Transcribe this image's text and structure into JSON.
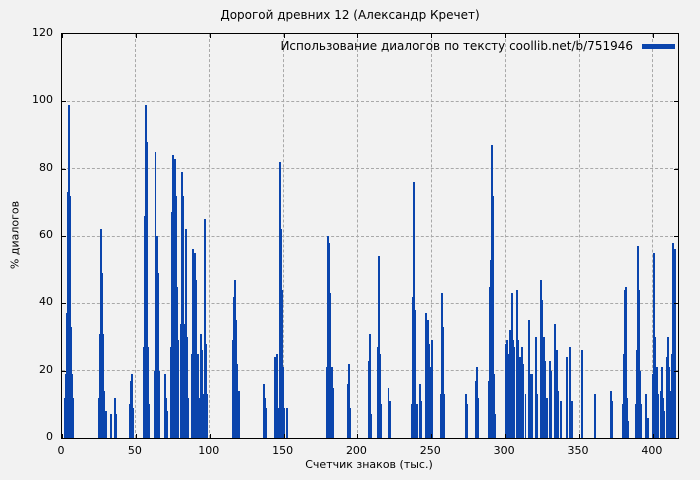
{
  "chart_data": {
    "type": "bar",
    "title": "Дорогой древних 12 (Александр Кречет)",
    "xlabel": "Счетчик знаков (тыс.)",
    "ylabel": "% диалогов",
    "legend": {
      "label": "Использование диалогов по тексту coollib.net/b/751946",
      "position": "top-right"
    },
    "bar_color": "#0b45ad",
    "grid": true,
    "xlim": [
      0,
      417
    ],
    "ylim": [
      0,
      120
    ],
    "xticks": [
      0,
      50,
      100,
      150,
      200,
      250,
      300,
      350,
      400
    ],
    "yticks": [
      0,
      20,
      40,
      60,
      80,
      100,
      120
    ],
    "bars": [
      [
        2.0,
        12
      ],
      [
        2.7,
        19
      ],
      [
        3.3,
        37
      ],
      [
        3.9,
        73
      ],
      [
        4.5,
        99
      ],
      [
        5.1,
        90
      ],
      [
        5.7,
        72
      ],
      [
        6.3,
        33
      ],
      [
        6.9,
        19
      ],
      [
        7.5,
        12
      ],
      [
        25.3,
        12
      ],
      [
        26.0,
        31
      ],
      [
        26.7,
        62
      ],
      [
        27.4,
        49
      ],
      [
        28.1,
        31
      ],
      [
        28.8,
        14
      ],
      [
        29.5,
        8
      ],
      [
        33.1,
        7
      ],
      [
        36.0,
        12
      ],
      [
        36.8,
        7
      ],
      [
        45.8,
        10
      ],
      [
        46.4,
        17
      ],
      [
        47.1,
        19
      ],
      [
        47.8,
        9
      ],
      [
        55.6,
        27
      ],
      [
        56.3,
        66
      ],
      [
        57.0,
        99
      ],
      [
        57.7,
        88
      ],
      [
        58.4,
        27
      ],
      [
        59.1,
        10
      ],
      [
        62.6,
        20
      ],
      [
        63.3,
        85
      ],
      [
        64.1,
        60
      ],
      [
        64.8,
        49
      ],
      [
        65.5,
        20
      ],
      [
        69.8,
        19
      ],
      [
        70.5,
        12
      ],
      [
        71.2,
        8
      ],
      [
        73.8,
        27
      ],
      [
        74.6,
        67
      ],
      [
        75.4,
        84
      ],
      [
        76.2,
        83
      ],
      [
        77.0,
        72
      ],
      [
        77.8,
        45
      ],
      [
        78.6,
        29
      ],
      [
        80.5,
        34
      ],
      [
        81.3,
        79
      ],
      [
        82.1,
        72
      ],
      [
        82.9,
        34
      ],
      [
        83.7,
        62
      ],
      [
        84.5,
        30
      ],
      [
        85.3,
        12
      ],
      [
        87.8,
        25
      ],
      [
        88.6,
        56
      ],
      [
        89.4,
        34
      ],
      [
        90.2,
        55
      ],
      [
        91.0,
        47
      ],
      [
        91.8,
        25
      ],
      [
        92.6,
        12
      ],
      [
        94.0,
        31
      ],
      [
        94.8,
        26
      ],
      [
        95.6,
        13
      ],
      [
        96.9,
        65
      ],
      [
        97.7,
        28
      ],
      [
        98.5,
        13
      ],
      [
        116.0,
        29
      ],
      [
        116.7,
        42
      ],
      [
        117.4,
        47
      ],
      [
        118.1,
        35
      ],
      [
        118.8,
        22
      ],
      [
        119.6,
        14
      ],
      [
        136.5,
        16
      ],
      [
        137.2,
        12
      ],
      [
        138.0,
        9
      ],
      [
        144.5,
        24
      ],
      [
        145.3,
        25
      ],
      [
        146.6,
        9
      ],
      [
        147.4,
        82
      ],
      [
        148.2,
        62
      ],
      [
        149.0,
        44
      ],
      [
        149.8,
        21
      ],
      [
        150.6,
        9
      ],
      [
        152.3,
        9
      ],
      [
        179.3,
        21
      ],
      [
        180.1,
        60
      ],
      [
        180.9,
        58
      ],
      [
        181.7,
        43
      ],
      [
        182.5,
        21
      ],
      [
        183.3,
        15
      ],
      [
        193.3,
        16
      ],
      [
        194.1,
        22
      ],
      [
        194.9,
        9
      ],
      [
        207.7,
        23
      ],
      [
        208.4,
        31
      ],
      [
        209.2,
        7
      ],
      [
        213.8,
        27
      ],
      [
        214.5,
        54
      ],
      [
        215.3,
        25
      ],
      [
        216.1,
        10
      ],
      [
        221.0,
        15
      ],
      [
        221.8,
        11
      ],
      [
        237.1,
        10
      ],
      [
        237.8,
        42
      ],
      [
        238.5,
        76
      ],
      [
        239.3,
        38
      ],
      [
        240.1,
        10
      ],
      [
        242.4,
        16
      ],
      [
        243.2,
        11
      ],
      [
        246.7,
        37
      ],
      [
        247.5,
        35
      ],
      [
        248.2,
        28
      ],
      [
        249.0,
        21
      ],
      [
        249.8,
        18
      ],
      [
        250.5,
        29
      ],
      [
        256.6,
        13
      ],
      [
        257.3,
        43
      ],
      [
        258.1,
        33
      ],
      [
        258.9,
        13
      ],
      [
        273.7,
        13
      ],
      [
        274.5,
        10
      ],
      [
        280.1,
        17
      ],
      [
        280.9,
        21
      ],
      [
        281.7,
        12
      ],
      [
        288.8,
        17
      ],
      [
        289.6,
        45
      ],
      [
        290.3,
        53
      ],
      [
        291.0,
        87
      ],
      [
        291.8,
        72
      ],
      [
        292.6,
        19
      ],
      [
        293.3,
        7
      ],
      [
        300.4,
        28
      ],
      [
        301.2,
        29
      ],
      [
        302.0,
        25
      ],
      [
        303.3,
        32
      ],
      [
        304.7,
        43
      ],
      [
        305.5,
        29
      ],
      [
        306.3,
        27
      ],
      [
        308.0,
        44
      ],
      [
        308.8,
        29
      ],
      [
        310.0,
        24
      ],
      [
        311.5,
        27
      ],
      [
        312.3,
        22
      ],
      [
        313.8,
        13
      ],
      [
        316.0,
        35
      ],
      [
        316.8,
        19
      ],
      [
        318.3,
        19
      ],
      [
        321.0,
        30
      ],
      [
        321.8,
        13
      ],
      [
        324.5,
        47
      ],
      [
        325.3,
        41
      ],
      [
        326.1,
        30
      ],
      [
        327.0,
        23
      ],
      [
        328.5,
        12
      ],
      [
        330.6,
        23
      ],
      [
        331.4,
        20
      ],
      [
        334.0,
        34
      ],
      [
        334.8,
        26
      ],
      [
        335.6,
        14
      ],
      [
        337.8,
        11
      ],
      [
        341.9,
        24
      ],
      [
        343.7,
        27
      ],
      [
        345.4,
        11
      ],
      [
        352.0,
        26
      ],
      [
        361.0,
        13
      ],
      [
        371.8,
        14
      ],
      [
        372.6,
        11
      ],
      [
        380.0,
        10
      ],
      [
        380.7,
        25
      ],
      [
        381.4,
        44
      ],
      [
        382.1,
        45
      ],
      [
        382.8,
        12
      ],
      [
        383.5,
        5
      ],
      [
        388.6,
        10
      ],
      [
        389.3,
        26
      ],
      [
        390.0,
        57
      ],
      [
        390.8,
        44
      ],
      [
        391.5,
        20
      ],
      [
        392.2,
        10
      ],
      [
        395.6,
        13
      ],
      [
        396.4,
        6
      ],
      [
        400.3,
        19
      ],
      [
        401.0,
        55
      ],
      [
        401.8,
        30
      ],
      [
        402.5,
        21
      ],
      [
        403.2,
        13
      ],
      [
        405.2,
        14
      ],
      [
        405.9,
        21
      ],
      [
        406.6,
        12
      ],
      [
        407.3,
        8
      ],
      [
        409.8,
        24
      ],
      [
        410.5,
        30
      ],
      [
        411.2,
        21
      ],
      [
        412.0,
        14
      ],
      [
        413.0,
        25
      ],
      [
        413.7,
        58
      ],
      [
        414.4,
        52
      ],
      [
        415.2,
        56
      ]
    ]
  }
}
